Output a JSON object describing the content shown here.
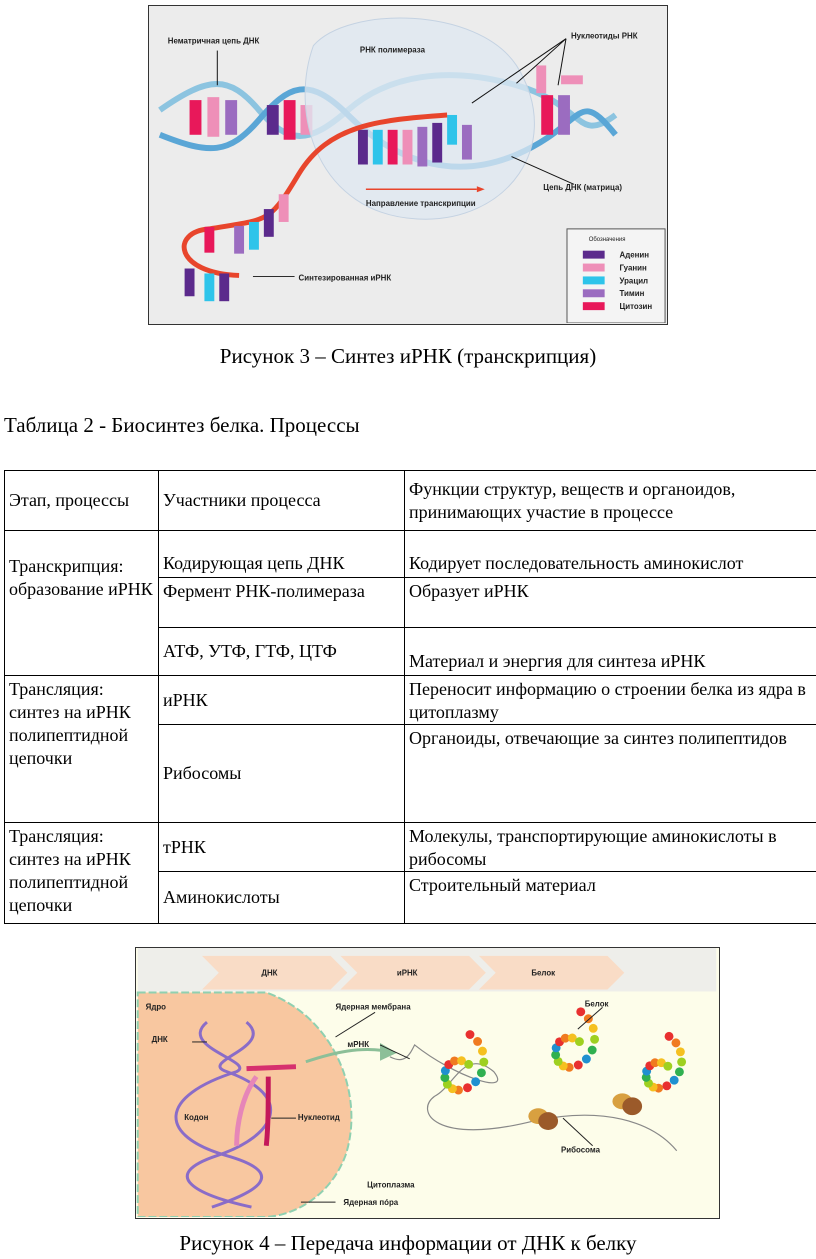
{
  "figure3": {
    "labels": {
      "nontemplate_strand": "Нематричная цепь ДНК",
      "rna_polymerase": "РНК полимераза",
      "rna_nucleotides": "Нуклеотиды РНК",
      "template_strand": "Цепь ДНК (матрица)",
      "direction": "Направление транскрипции",
      "synthesized_mrna": "Синтезированная иРНК"
    },
    "legend": {
      "title": "Обозначения",
      "items": [
        {
          "label": "Аденин",
          "color": "#5b2a8c"
        },
        {
          "label": "Гуанин",
          "color": "#ee8fb8"
        },
        {
          "label": "Урацил",
          "color": "#2ec4ea"
        },
        {
          "label": "Тимин",
          "color": "#9b6cc0"
        },
        {
          "label": "Цитозин",
          "color": "#e8185a"
        }
      ]
    },
    "caption": "Рисунок 3 – Синтез иРНК (транскрипция)"
  },
  "table": {
    "caption": "Таблица 2 - Биосинтез белка. Процессы",
    "headers": [
      "Этап, процессы",
      "Участники процесса",
      "Функции структур, веществ и органоидов, принимающих участие в процессе"
    ],
    "groups": [
      {
        "stage": "Транскрипция: образование иРНК",
        "rows": [
          {
            "participant": "Кодирующая цепь ДНК",
            "function": "Кодирует последовательность аминокислот"
          },
          {
            "participant": "Фермент РНК-полимераза",
            "function": "Образует иРНК"
          },
          {
            "participant": "АТФ, УТФ, ГТФ, ЦТФ",
            "function": "Материал и энергия для синтеза иРНК"
          }
        ]
      },
      {
        "stage": "Трансляция: синтез на иРНК полипептидной цепочки",
        "rows": [
          {
            "participant": "иРНК",
            "function": "Переносит информацию о строении белка из ядра в цитоплазму"
          },
          {
            "participant": "Рибосомы",
            "function": "Органоиды, отвечающие за синтез полипептидов"
          }
        ]
      },
      {
        "stage": "Трансляция: синтез на иРНК полипептидной цепочки",
        "rows": [
          {
            "participant": "тРНК",
            "function": "Молекулы, транспортирующие аминокислоты в рибосомы"
          },
          {
            "participant": "Аминокислоты",
            "function": "Строительный материал"
          }
        ]
      }
    ]
  },
  "figure4": {
    "steps": [
      "ДНК",
      "иРНК",
      "Белок"
    ],
    "labels": {
      "nucleus": "Ядро",
      "nuclear_membrane": "Ядерная мембрана",
      "protein": "Белок",
      "dna": "ДНК",
      "mrna": "мРНК",
      "codon": "Кодон",
      "nucleotide": "Нуклеотид",
      "ribosome": "Рибосома",
      "cytoplasm": "Цитоплазма",
      "nuclear_pore": "Ядерная пóра"
    },
    "caption": "Рисунок 4 – Передача информации от ДНК к белку"
  }
}
